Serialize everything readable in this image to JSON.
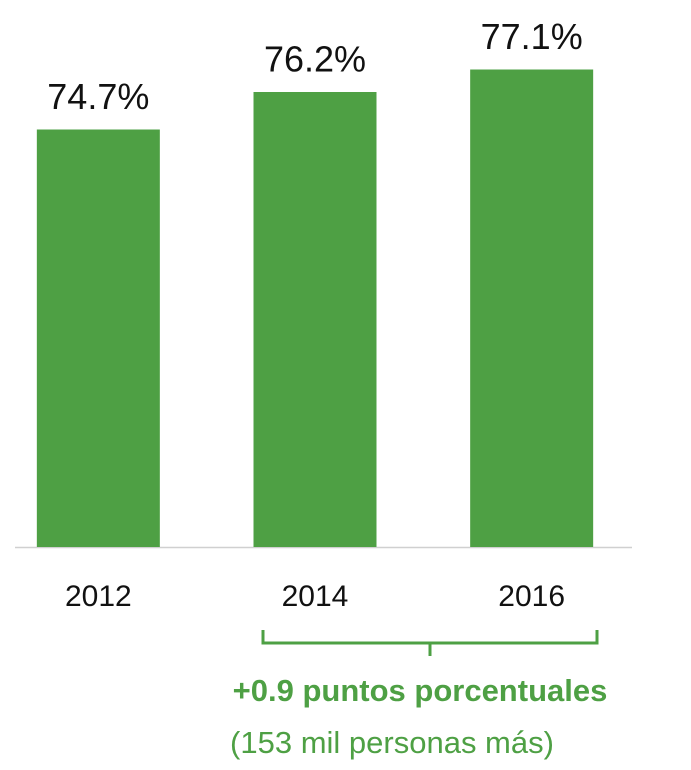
{
  "chart_data": {
    "type": "bar",
    "categories": [
      "2012",
      "2014",
      "2016"
    ],
    "values": [
      74.7,
      76.2,
      77.1
    ],
    "value_labels": [
      "74.7%",
      "76.2%",
      "77.1%"
    ],
    "color": "#4ea044",
    "ylim": [
      58,
      78
    ],
    "annotations": [
      "+0.9 puntos porcentuales",
      "(153 mil personas más)"
    ]
  }
}
